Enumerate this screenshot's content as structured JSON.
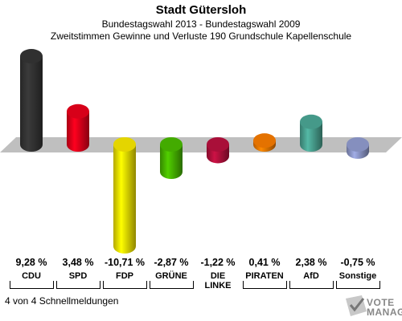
{
  "title": "Stadt Gütersloh",
  "subtitle": "Bundestagswahl 2013 - Bundestagswahl 2009",
  "subtitle2": "Zweitstimmen Gewinne und Verluste 190 Grundschule Kapellenschule",
  "footer": "4 von 4 Schnellmeldungen",
  "logo": {
    "line1": "VOTE",
    "line2": "MANAGER"
  },
  "chart_data": {
    "type": "bar",
    "categories": [
      "CDU",
      "SPD",
      "FDP",
      "GRÜNE",
      "DIE LINKE",
      "PIRATEN",
      "AfD",
      "Sonstige"
    ],
    "category_labels": [
      "CDU",
      "SPD",
      "FDP",
      "GRÜNE",
      "DIE\nLINKE",
      "PIRATEN",
      "AfD",
      "Sonstige"
    ],
    "values": [
      9.28,
      3.48,
      -10.71,
      -2.87,
      -1.22,
      0.41,
      2.38,
      -0.75
    ],
    "value_labels": [
      "9,28 %",
      "3,48 %",
      "-10,71 %",
      "-2,87 %",
      "-1,22 %",
      "0,41 %",
      "2,38 %",
      "-0,75 %"
    ],
    "colors": [
      "#333333",
      "#e2001a",
      "#f0e000",
      "#46b400",
      "#b2103c",
      "#f07800",
      "#49a190",
      "#8c96c8"
    ],
    "title": "Stadt Gütersloh"
  }
}
